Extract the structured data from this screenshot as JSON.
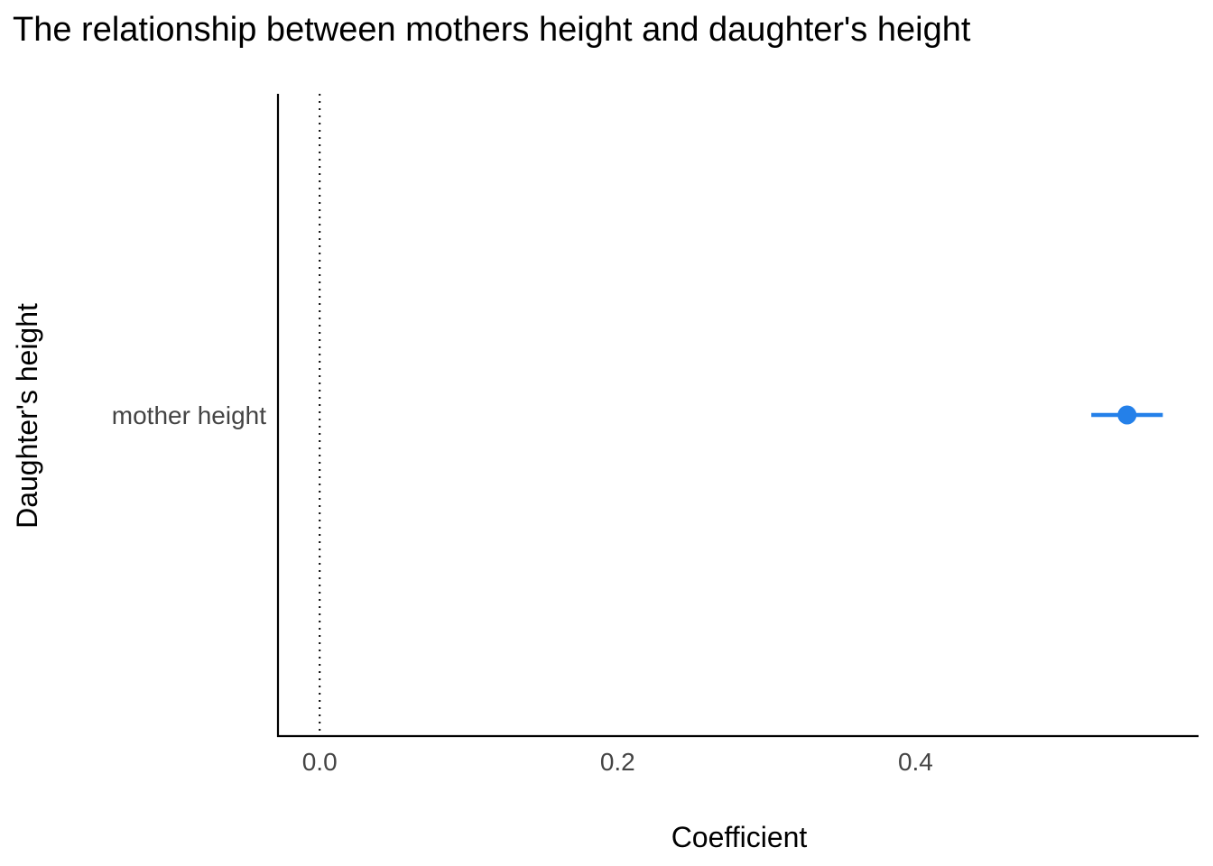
{
  "chart_data": {
    "type": "scatter",
    "title": "The relationship between mothers height and daughter's height",
    "xlabel": "Coefficient",
    "ylabel": "Daughter's height",
    "xlim": [
      -0.028,
      0.59
    ],
    "x_ticks": [
      0.0,
      0.2,
      0.4
    ],
    "x_tick_labels": [
      "0.0",
      "0.2",
      "0.4"
    ],
    "reference_line": {
      "x": 0,
      "style": "dotted"
    },
    "grid": false,
    "series": [
      {
        "points": [
          {
            "term": "mother height",
            "estimate": 0.542,
            "conf_low": 0.518,
            "conf_high": 0.566
          }
        ]
      }
    ],
    "colors": {
      "point": "#2480E9",
      "axis": "#000000",
      "reference_line": "#000000"
    }
  }
}
